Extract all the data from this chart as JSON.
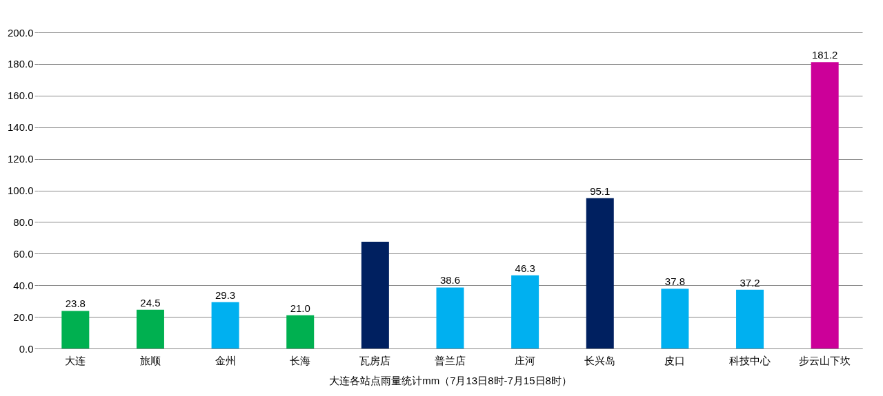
{
  "chart_data": {
    "type": "bar",
    "xlabel": "大连各站点雨量统计mm（7月13日8时-7月15日8时）",
    "categories": [
      "大连",
      "旅顺",
      "金州",
      "长海",
      "瓦房店",
      "普兰店",
      "庄河",
      "长兴岛",
      "皮口",
      "科技中心",
      "步云山下坎"
    ],
    "values": [
      23.8,
      24.5,
      29.3,
      21.0,
      67.5,
      38.6,
      46.3,
      95.1,
      37.8,
      37.2,
      181.2
    ],
    "value_labels": [
      "23.8",
      "24.5",
      "29.3",
      "21.0",
      null,
      "38.6",
      "46.3",
      "95.1",
      "37.8",
      "37.2",
      "181.2"
    ],
    "colors": [
      "#00b050",
      "#00b050",
      "#00b0f0",
      "#00b050",
      "#002060",
      "#00b0f0",
      "#00b0f0",
      "#002060",
      "#00b0f0",
      "#00b0f0",
      "#cc0099"
    ],
    "ylim": [
      0,
      200
    ],
    "yticks": [
      {
        "value": 0,
        "label": "0.0"
      },
      {
        "value": 20,
        "label": "20.0"
      },
      {
        "value": 40,
        "label": "40.0"
      },
      {
        "value": 60,
        "label": "60.0"
      },
      {
        "value": 80,
        "label": "80.0"
      },
      {
        "value": 100,
        "label": "100.0"
      },
      {
        "value": 120,
        "label": "120.0"
      },
      {
        "value": 140,
        "label": "140.0"
      },
      {
        "value": 160,
        "label": "160.0"
      },
      {
        "value": 180,
        "label": "180.0"
      },
      {
        "value": 200,
        "label": "200.0"
      }
    ],
    "grid": "y"
  }
}
